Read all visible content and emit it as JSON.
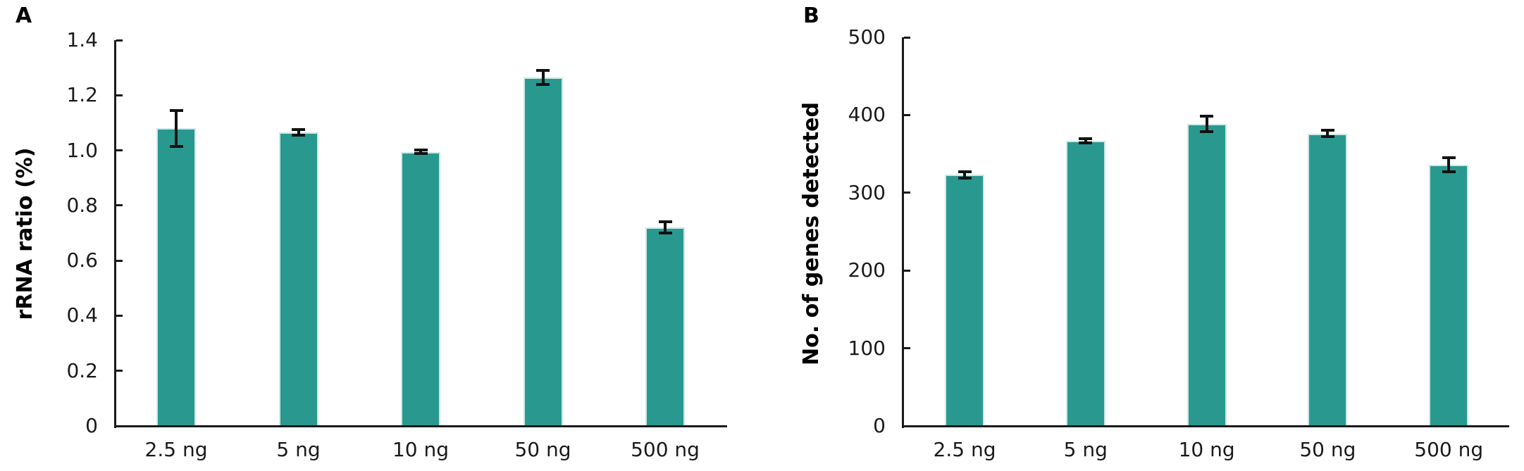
{
  "figure": {
    "background_color": "#ffffff",
    "bar_color": "#29998F",
    "bar_edge_color": "#CDE8E4",
    "axis_color": "#1A1A1A",
    "error_bar_color": "#121212",
    "text_color": "#000000"
  },
  "chart_data": [
    {
      "type": "bar",
      "panel_label": "A",
      "title": "",
      "xlabel": "",
      "ylabel": "rRNA ratio (%)",
      "categories": [
        "2.5 ng",
        "5 ng",
        "10 ng",
        "50 ng",
        "500 ng"
      ],
      "values": [
        1.08,
        1.065,
        0.995,
        1.265,
        0.72
      ],
      "errors": [
        0.065,
        0.01,
        0.006,
        0.025,
        0.02
      ],
      "ylim": [
        0,
        1.4
      ],
      "yticks": [
        "0",
        "0.2",
        "0.4",
        "0.6",
        "0.8",
        "1.0",
        "1.2",
        "1.4"
      ],
      "grid": false,
      "legend": null
    },
    {
      "type": "bar",
      "panel_label": "B",
      "title": "",
      "xlabel": "",
      "ylabel": "No. of genes detected",
      "categories": [
        "2.5 ng",
        "5 ng",
        "10 ng",
        "50 ng",
        "500 ng"
      ],
      "values": [
        323,
        367,
        389,
        376,
        336
      ],
      "errors": [
        4,
        3,
        10,
        4,
        9
      ],
      "ylim": [
        0,
        500
      ],
      "yticks": [
        "0",
        "100",
        "200",
        "300",
        "400",
        "500"
      ],
      "grid": false,
      "legend": null
    }
  ]
}
